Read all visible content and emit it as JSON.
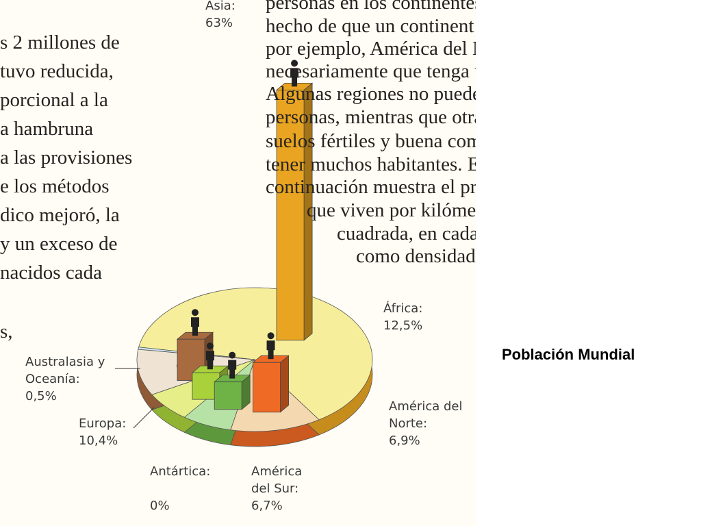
{
  "chart_data": {
    "type": "pie",
    "title": "Población Mundial",
    "categories": [
      "Asia:",
      "África:",
      "América del Norte:",
      "América del Sur:",
      "Antártica:",
      "Europa:",
      "Australasia y Oceanía:"
    ],
    "values": [
      63,
      12.5,
      6.9,
      6.7,
      0,
      10.4,
      0.5
    ],
    "value_labels": [
      "63%",
      "12,5%",
      "6,9%",
      "6,7%",
      "0%",
      "10,4%",
      "0,5%"
    ],
    "colors": [
      "#f6ee9a",
      "#f3d8b0",
      "#b7e2a6",
      "#e6ee8a",
      "#d6a8e0",
      "#efe4d4",
      "#cfe6f0"
    ],
    "bar_colors": [
      "#e9a521",
      "#ee6a25",
      "#6fb347",
      "#a9d23a",
      "#9a5fb0",
      "#a86a3f",
      "#9fc6d8"
    ],
    "left_text": [
      "s 2 millones de",
      "tuvo reducida,",
      "porcional a la",
      "a hambruna",
      "a las provisiones",
      "e los métodos",
      "dico mejoró, la",
      "y un exceso de",
      "nacidos cada",
      "s,"
    ],
    "right_text": [
      "personas en los continentes",
      "hecho de que un continent",
      "por ejemplo, América del N",
      "necesariamente que tenga u",
      "Algunas regiones no puede",
      "personas, mientras que otra",
      "suelos fértiles y buena comu",
      "tener muchos habitantes.  E",
      "continuación muestra el pr",
      "que viven por kilómetr",
      "cuadrada, en cada",
      "como densidad"
    ]
  }
}
